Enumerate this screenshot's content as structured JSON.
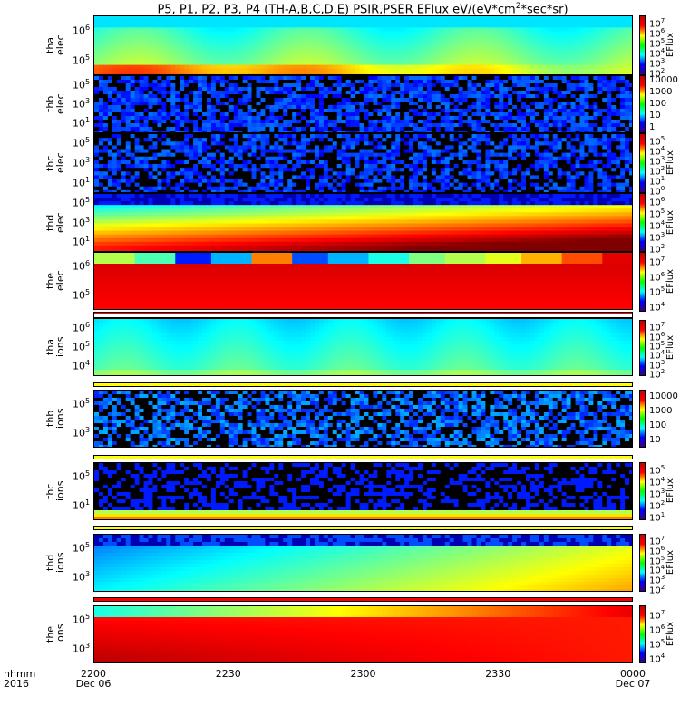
{
  "title": "P5, P1, P2, P3, P4 (TH-A,B,C,D,E) PSIR,PSER EFlux eV/(eV*cm",
  "title_sup": "2",
  "title_end": "*sec*sr)",
  "colorbar_label": "EFlux",
  "x_axis": {
    "row1_label": "hhmm",
    "row2_label": "2016",
    "ticks": [
      {
        "label": "2200",
        "sub": "Dec 06"
      },
      {
        "label": "2230",
        "sub": ""
      },
      {
        "label": "2300",
        "sub": ""
      },
      {
        "label": "2330",
        "sub": ""
      },
      {
        "label": "0000",
        "sub": "Dec 07"
      }
    ]
  },
  "chart_data": {
    "type": "heatmap",
    "title": "P5, P1, P2, P3, P4 (TH-A,B,C,D,E) PSIR,PSER EFlux eV/(eV*cm^2*sec*sr)",
    "x_range": [
      "2016-12-06 22:00",
      "2016-12-07 00:00"
    ],
    "panels": [
      {
        "name": "tha elec",
        "ylabel": "tha\nelec",
        "yticks": [
          "10^6",
          "10^5"
        ],
        "cbar_ticks": [
          "10^7",
          "10^6",
          "10^5",
          "10^4",
          "10^3",
          "10^2"
        ],
        "cbar_label": "EFlux"
      },
      {
        "name": "thb elec",
        "ylabel": "thb\nelec",
        "yticks": [
          "10^5",
          "10^3",
          "10^1"
        ],
        "cbar_ticks": [
          "10000",
          "1000",
          "100",
          "10",
          "1"
        ],
        "cbar_label": ""
      },
      {
        "name": "thc elec",
        "ylabel": "thc\nelec",
        "yticks": [
          "10^5",
          "10^3",
          "10^1"
        ],
        "cbar_ticks": [
          "10^5",
          "10^4",
          "10^3",
          "10^2",
          "10^1",
          "10^0"
        ],
        "cbar_label": "EFlux"
      },
      {
        "name": "thd elec",
        "ylabel": "thd\nelec",
        "yticks": [
          "10^5",
          "10^3",
          "10^1"
        ],
        "cbar_ticks": [
          "10^6",
          "10^5",
          "10^4",
          "10^3",
          "10^2"
        ],
        "cbar_label": "EFlux"
      },
      {
        "name": "the elec",
        "ylabel": "the\nelec",
        "yticks": [
          "10^6",
          "10^5"
        ],
        "cbar_ticks": [
          "10^7",
          "10^6",
          "10^5",
          "10^4"
        ],
        "cbar_label": "EFlux"
      },
      {
        "name": "tha ions",
        "ylabel": "tha\nions",
        "yticks": [
          "10^6",
          "10^5",
          "10^4"
        ],
        "cbar_ticks": [
          "10^7",
          "10^6",
          "10^5",
          "10^4",
          "10^3",
          "10^2"
        ],
        "cbar_label": "EFlux"
      },
      {
        "name": "thb ions",
        "ylabel": "thb\nions",
        "yticks": [
          "10^5",
          "10^3"
        ],
        "cbar_ticks": [
          "10000",
          "1000",
          "100",
          "10"
        ],
        "cbar_label": ""
      },
      {
        "name": "thc ions",
        "ylabel": "thc\nions",
        "yticks": [
          "10^5",
          "10^1"
        ],
        "cbar_ticks": [
          "10^5",
          "10^4",
          "10^3",
          "10^2",
          "10^1"
        ],
        "cbar_label": "EFlux"
      },
      {
        "name": "thd ions",
        "ylabel": "thd\nions",
        "yticks": [
          "10^5",
          "10^3"
        ],
        "cbar_ticks": [
          "10^7",
          "10^6",
          "10^5",
          "10^4",
          "10^3",
          "10^2"
        ],
        "cbar_label": "EFlux"
      },
      {
        "name": "the ions",
        "ylabel": "the\nions",
        "yticks": [
          "10^5",
          "10^3"
        ],
        "cbar_ticks": [
          "10^7",
          "10^6",
          "10^5",
          "10^4"
        ],
        "cbar_label": "EFlux"
      }
    ]
  }
}
